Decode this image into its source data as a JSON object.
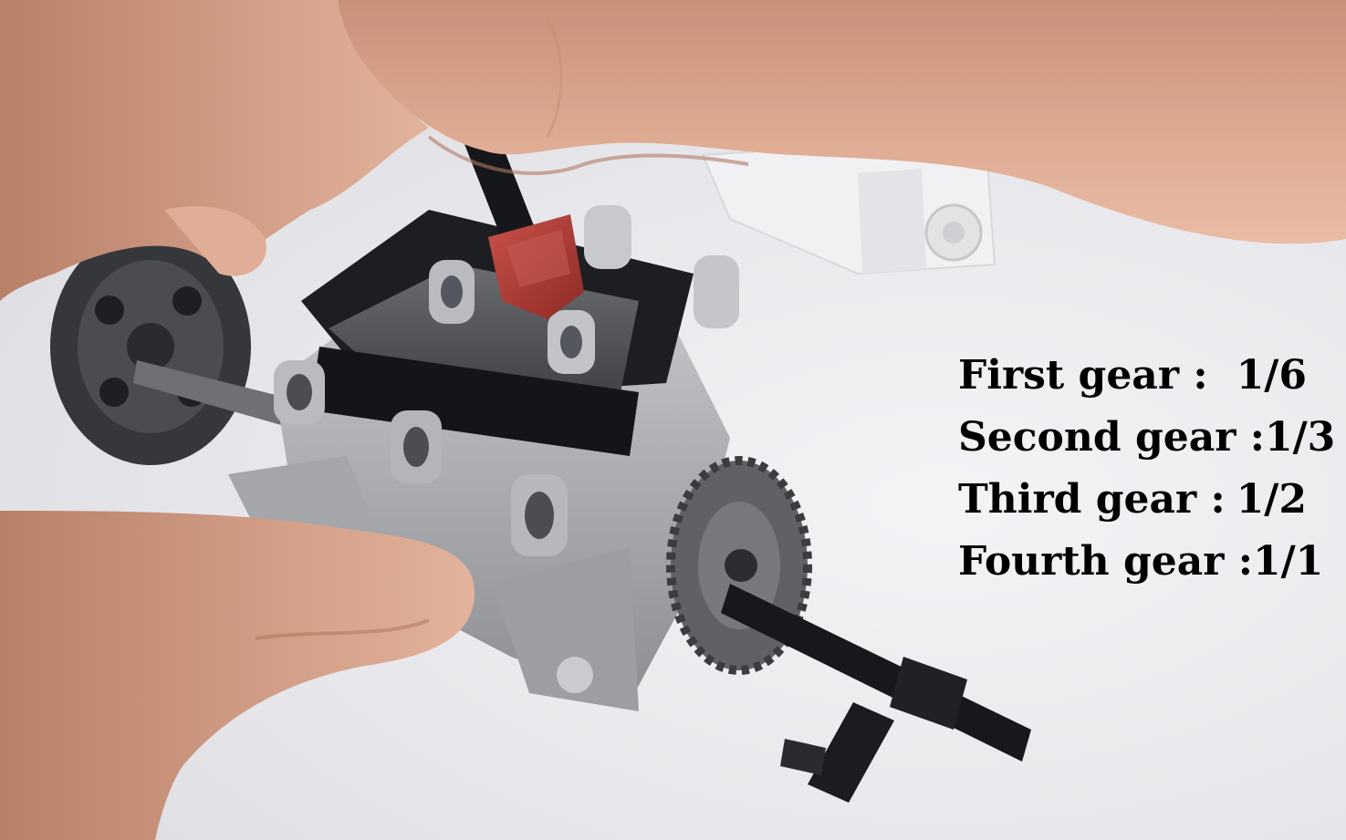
{
  "overlay": {
    "rows": [
      {
        "label": "First gear :",
        "value": "1/6"
      },
      {
        "label": "Second gear :",
        "value": "1/3"
      },
      {
        "label": "Third gear :",
        "value": "1/2"
      },
      {
        "label": "Fourth gear :",
        "value": "1/1"
      }
    ]
  },
  "scene": {
    "subject": "lego-technic-gearbox",
    "colors": {
      "background": "#e9e9ec",
      "skin": "#d9a890",
      "technic_light_gray": "#a9abae",
      "technic_dark_gray": "#57595c",
      "technic_black": "#15161a",
      "shift_selector_red": "#b23a32",
      "motor_white": "#f2f2f4"
    }
  }
}
